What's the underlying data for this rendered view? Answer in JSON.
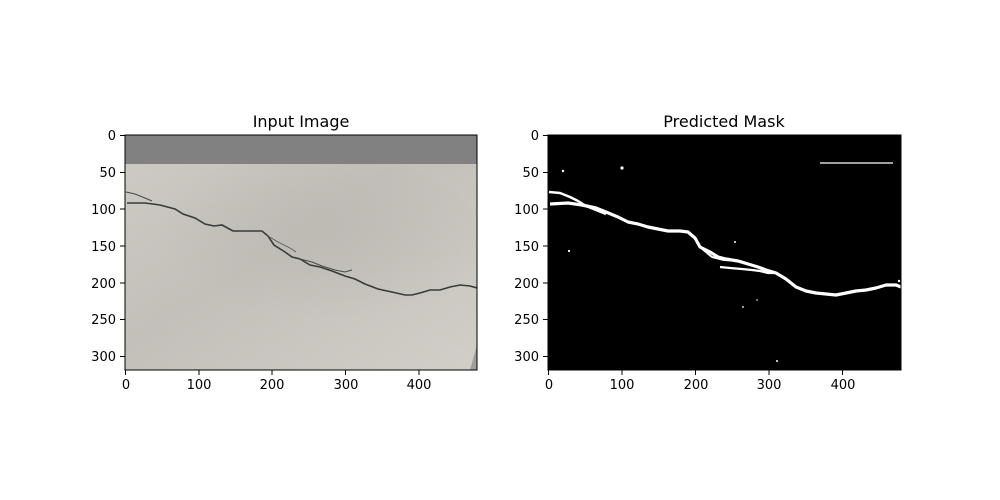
{
  "panels": [
    {
      "title": "Input Image",
      "kind": "photo",
      "x_ticks": [
        0,
        100,
        200,
        300,
        400
      ],
      "y_ticks": [
        0,
        50,
        100,
        150,
        200,
        250,
        300
      ],
      "x_range": [
        0,
        480
      ],
      "y_range": [
        0,
        320
      ],
      "y_inverted": true,
      "background_color": "#cdcac3",
      "gray_band_color": "#818181"
    },
    {
      "title": "Predicted Mask",
      "kind": "binary-mask",
      "x_ticks": [
        0,
        100,
        200,
        300,
        400
      ],
      "y_ticks": [
        0,
        50,
        100,
        150,
        200,
        250,
        300
      ],
      "x_range": [
        0,
        480
      ],
      "y_range": [
        0,
        320
      ],
      "y_inverted": true,
      "background_color": "#000000",
      "mask_color": "#ffffff"
    }
  ]
}
